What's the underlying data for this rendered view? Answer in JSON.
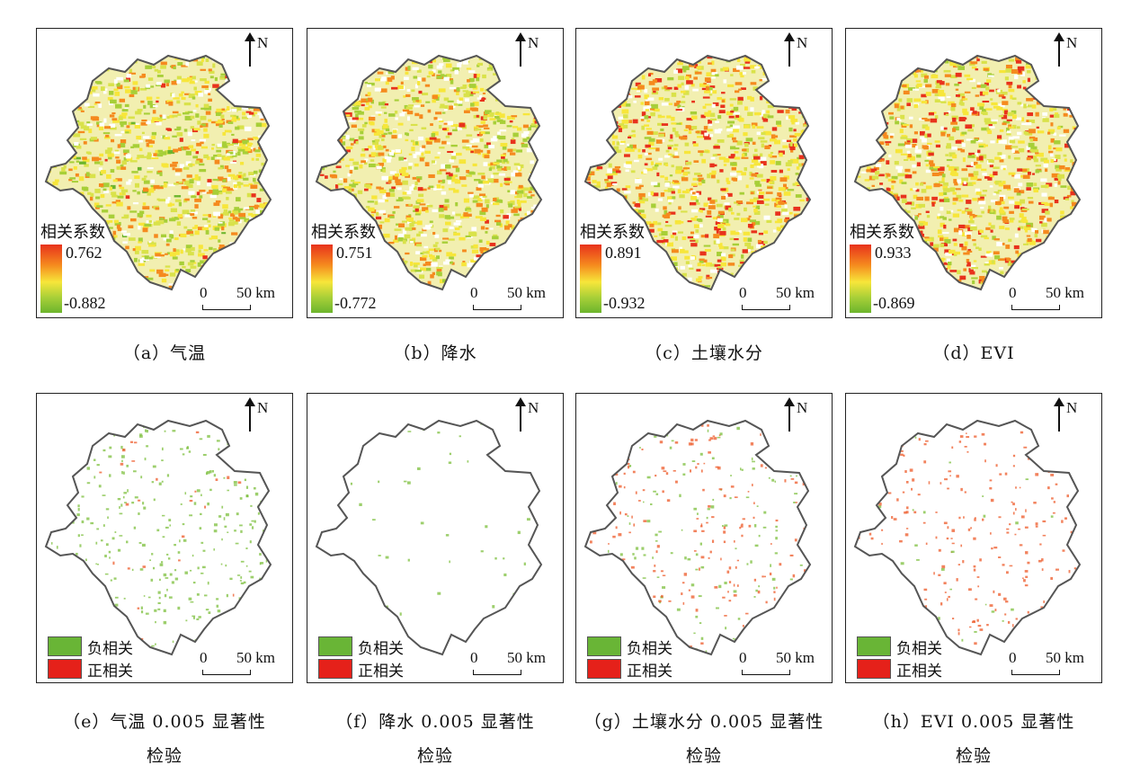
{
  "north_label": "N",
  "legend_title": "相关系数",
  "scale": {
    "zero": "0",
    "distance": "50 km"
  },
  "sig_legend": {
    "negative": "负相关",
    "positive": "正相关"
  },
  "colors": {
    "gradient_high": "#e8321c",
    "gradient_mid": "#f7e63a",
    "gradient_low": "#6cb52d",
    "negative_correlation": "#69b536",
    "positive_correlation": "#e5211a",
    "boundary": "#555555"
  },
  "panels": [
    {
      "id": "a",
      "caption": "（a）气温",
      "kind": "correlation",
      "max": "0.762",
      "min": "-0.882"
    },
    {
      "id": "b",
      "caption": "（b）降水",
      "kind": "correlation",
      "max": "0.751",
      "min": "-0.772"
    },
    {
      "id": "c",
      "caption": "（c）土壤水分",
      "kind": "correlation",
      "max": "0.891",
      "min": "-0.932"
    },
    {
      "id": "d",
      "caption": "（d）EVI",
      "kind": "correlation",
      "max": "0.933",
      "min": "-0.869"
    },
    {
      "id": "e",
      "caption": "（e）气温 0.005 显著性",
      "caption2": "检验",
      "kind": "significance"
    },
    {
      "id": "f",
      "caption": "（f）降水 0.005 显著性",
      "caption2": "检验",
      "kind": "significance"
    },
    {
      "id": "g",
      "caption": "（g）土壤水分 0.005 显著性",
      "caption2": "检验",
      "kind": "significance"
    },
    {
      "id": "h",
      "caption": "（h）EVI 0.005 显著性",
      "caption2": "检验",
      "kind": "significance"
    }
  ]
}
